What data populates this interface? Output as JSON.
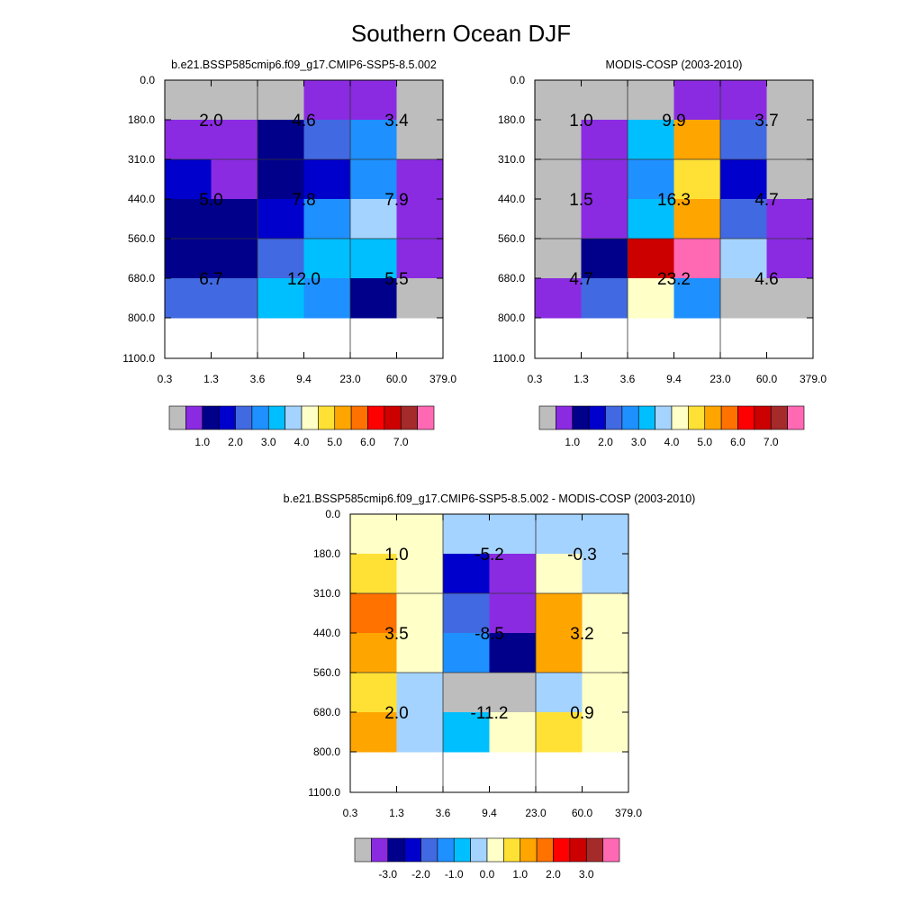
{
  "title": "Southern Ocean DJF",
  "chart_data": [
    {
      "type": "heatmap",
      "title": "b.e21.BSSP585cmip6.f09_g17.CMIP6-SSP5-8.5.002",
      "x_ticks": [
        "0.3",
        "1.3",
        "3.6",
        "9.4",
        "23.0",
        "60.0",
        "379.0"
      ],
      "y_ticks": [
        "0.0",
        "180.0",
        "310.0",
        "440.0",
        "560.0",
        "680.0",
        "800.0",
        "1100.0"
      ],
      "cells": [
        [
          "gray",
          "gray",
          "gray",
          "purple",
          "purple",
          "gray"
        ],
        [
          "purple",
          "purple",
          "navy",
          "royalblue",
          "dodgerblue",
          "gray"
        ],
        [
          "mediumblue",
          "purple",
          "navy",
          "mediumblue",
          "dodgerblue",
          "purple"
        ],
        [
          "navy",
          "navy",
          "mediumblue",
          "dodgerblue",
          "lightblue",
          "purple"
        ],
        [
          "navy",
          "navy",
          "royalblue",
          "deepskyblue",
          "deepskyblue",
          "purple"
        ],
        [
          "royalblue",
          "royalblue",
          "deepskyblue",
          "dodgerblue",
          "navy",
          "gray"
        ]
      ],
      "block_labels": [
        [
          "2.0",
          "4.6",
          "3.4"
        ],
        [
          "5.0",
          "7.8",
          "7.9"
        ],
        [
          "6.7",
          "12.0",
          "5.5"
        ]
      ],
      "colorbar_labels": [
        "1.0",
        "2.0",
        "3.0",
        "4.0",
        "5.0",
        "6.0",
        "7.0"
      ]
    },
    {
      "type": "heatmap",
      "title": "MODIS-COSP (2003-2010)",
      "x_ticks": [
        "0.3",
        "1.3",
        "3.6",
        "9.4",
        "23.0",
        "60.0",
        "379.0"
      ],
      "y_ticks": [
        "0.0",
        "180.0",
        "310.0",
        "440.0",
        "560.0",
        "680.0",
        "800.0",
        "1100.0"
      ],
      "cells": [
        [
          "gray",
          "gray",
          "gray",
          "purple",
          "purple",
          "gray"
        ],
        [
          "gray",
          "purple",
          "deepskyblue",
          "orange",
          "royalblue",
          "gray"
        ],
        [
          "gray",
          "purple",
          "dodgerblue",
          "gold",
          "mediumblue",
          "gray"
        ],
        [
          "gray",
          "purple",
          "deepskyblue",
          "orange",
          "royalblue",
          "purple"
        ],
        [
          "gray",
          "navy",
          "darkred",
          "pink",
          "lightblue",
          "purple"
        ],
        [
          "purple",
          "royalblue",
          "cream",
          "dodgerblue",
          "gray",
          "gray"
        ]
      ],
      "block_labels": [
        [
          "1.0",
          "9.9",
          "3.7"
        ],
        [
          "1.5",
          "16.3",
          "4.7"
        ],
        [
          "4.7",
          "23.2",
          "4.6"
        ]
      ],
      "colorbar_labels": [
        "1.0",
        "2.0",
        "3.0",
        "4.0",
        "5.0",
        "6.0",
        "7.0"
      ]
    },
    {
      "type": "heatmap",
      "title": "b.e21.BSSP585cmip6.f09_g17.CMIP6-SSP5-8.5.002 - MODIS-COSP (2003-2010)",
      "x_ticks": [
        "0.3",
        "1.3",
        "3.6",
        "9.4",
        "23.0",
        "60.0",
        "379.0"
      ],
      "y_ticks": [
        "0.0",
        "180.0",
        "310.0",
        "440.0",
        "560.0",
        "680.0",
        "800.0",
        "1100.0"
      ],
      "cells": [
        [
          "cream",
          "cream",
          "lightblue",
          "lightblue",
          "lightblue",
          "lightblue"
        ],
        [
          "gold",
          "cream",
          "mediumblue",
          "purple",
          "cream",
          "lightblue"
        ],
        [
          "darkorange",
          "cream",
          "royalblue",
          "purple",
          "orange",
          "cream"
        ],
        [
          "orange",
          "cream",
          "dodgerblue",
          "navy",
          "orange",
          "cream"
        ],
        [
          "gold",
          "lightblue",
          "gray",
          "gray",
          "lightblue",
          "cream"
        ],
        [
          "orange",
          "lightblue",
          "deepskyblue",
          "cream",
          "gold",
          "cream"
        ]
      ],
      "block_labels": [
        [
          "1.0",
          "-5.2",
          "-0.3"
        ],
        [
          "3.5",
          "-8.5",
          "3.2"
        ],
        [
          "2.0",
          "-11.2",
          "0.9"
        ]
      ],
      "colorbar_labels": [
        "-3.0",
        "-2.0",
        "-1.0",
        "0.0",
        "1.0",
        "2.0",
        "3.0"
      ]
    }
  ],
  "palette": {
    "gray": "#bdbdbd",
    "purple": "#8a2be2",
    "navy": "#00008b",
    "mediumblue": "#0000cd",
    "royalblue": "#4169e1",
    "dodgerblue": "#1e90ff",
    "deepskyblue": "#00bfff",
    "lightblue": "#a4d3ff",
    "cream": "#ffffc8",
    "gold": "#ffe135",
    "orange": "#ffa500",
    "darkorange": "#ff7200",
    "red": "#ff0000",
    "darkred": "#cd0000",
    "brown": "#a52a2a",
    "pink": "#ff69b4"
  },
  "colorbar_sequence": [
    "gray",
    "purple",
    "navy",
    "mediumblue",
    "royalblue",
    "dodgerblue",
    "deepskyblue",
    "lightblue",
    "cream",
    "gold",
    "orange",
    "darkorange",
    "red",
    "darkred",
    "brown",
    "pink"
  ]
}
